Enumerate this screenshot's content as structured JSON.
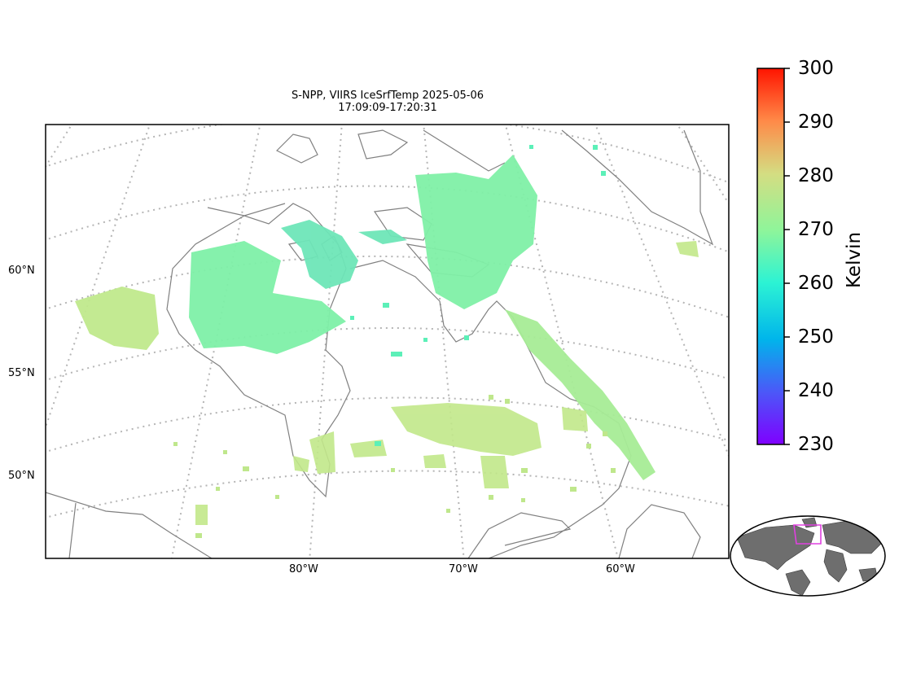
{
  "title": {
    "line1": "S-NPP, VIIRS IceSrfTemp 2025-05-06",
    "line2": "17:09:09-17:20:31"
  },
  "lat_labels": [
    "60°N",
    "55°N",
    "50°N"
  ],
  "lon_labels": [
    "80°W",
    "70°W",
    "60°W"
  ],
  "colorbar": {
    "label": "Kelvin",
    "ticks": [
      "300",
      "290",
      "280",
      "270",
      "260",
      "250",
      "240",
      "230"
    ],
    "min": 230,
    "max": 300,
    "colormap": "rainbow"
  },
  "colors": {
    "coastline": "#808080",
    "gridlines": "#b0b0b0",
    "warm_data": "#c2e88a",
    "mid_data": "#8ff3a4",
    "cold_data": "#5cf0b0",
    "coldest_data": "#4ed8c8",
    "inset_land": "#6e6e6e",
    "inset_box": "#e040e0"
  },
  "inset": {
    "name": "global-locator-map"
  }
}
